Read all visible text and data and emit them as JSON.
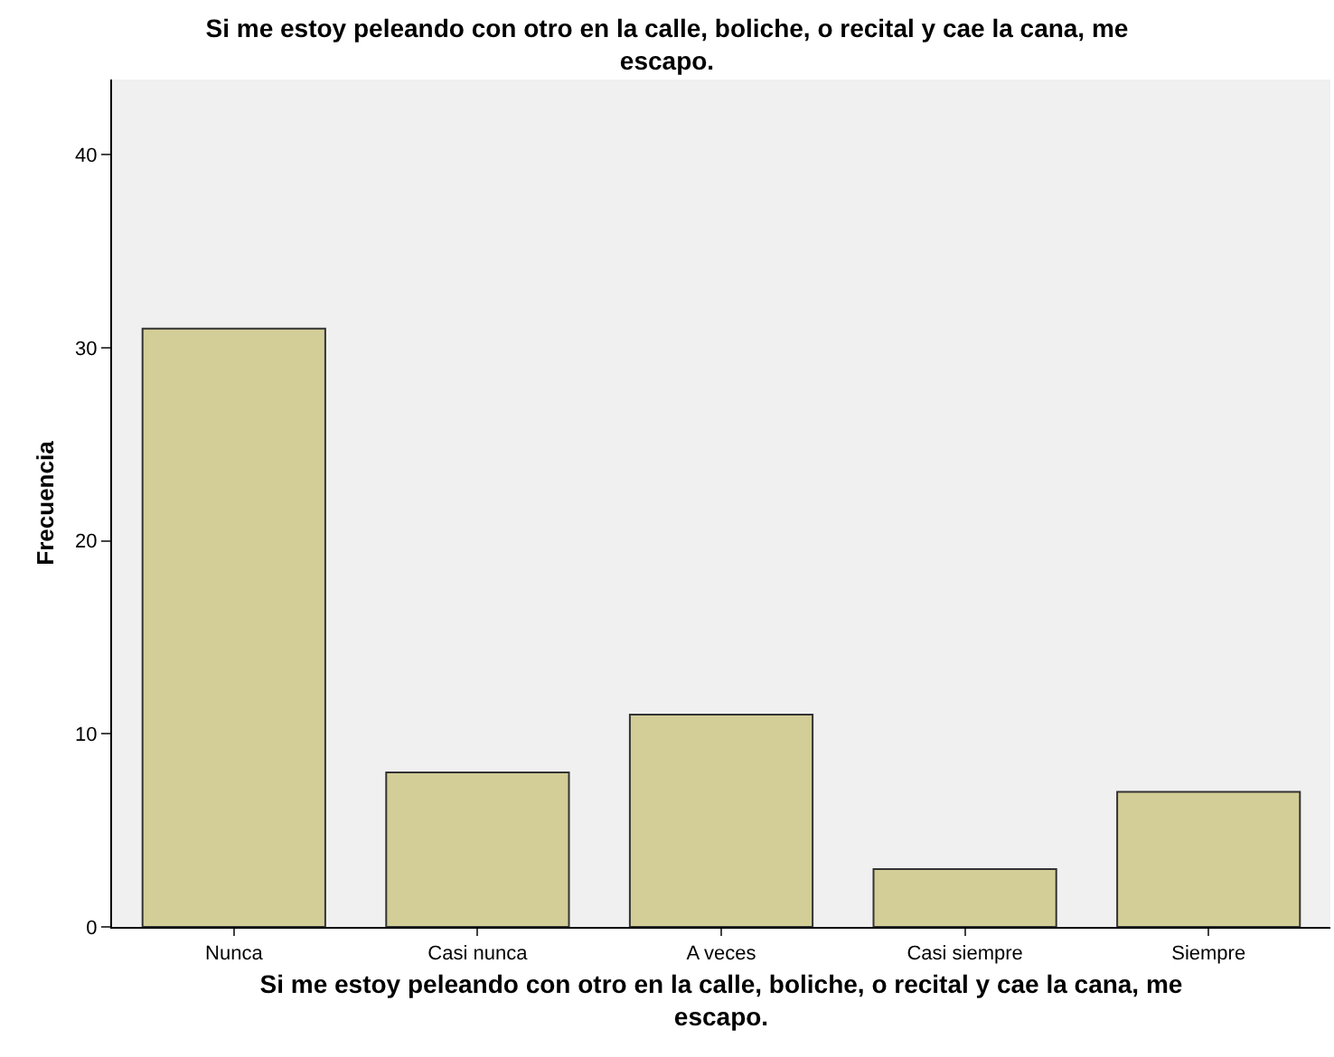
{
  "chart_data": {
    "type": "bar",
    "title": "Si me estoy peleando con otro en la calle, boliche, o recital y cae la cana, me escapo.",
    "xlabel": "Si me estoy peleando con otro en la calle, boliche, o recital y cae la cana, me escapo.",
    "ylabel": "Frecuencia",
    "categories": [
      "Nunca",
      "Casi nunca",
      "A veces",
      "Casi siempre",
      "Siempre"
    ],
    "values": [
      31,
      8,
      11,
      3,
      7
    ],
    "color": "#d3ce97",
    "ylim": [
      0,
      43.9
    ],
    "yticks": [
      0,
      10,
      20,
      30,
      40
    ],
    "grid": false
  }
}
